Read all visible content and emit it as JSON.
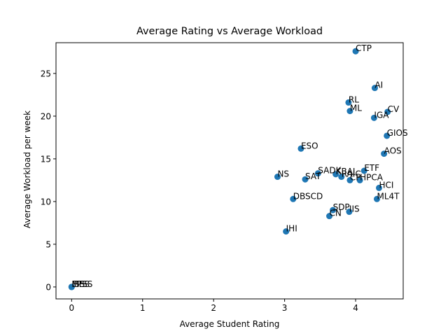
{
  "chart_data": {
    "type": "scatter",
    "title": "Average Rating vs Average Workload",
    "xlabel": "Average Student Rating",
    "ylabel": "Average Workload per week",
    "xlim": [
      -0.22,
      4.67
    ],
    "ylim": [
      -1.4,
      28.6
    ],
    "xticks": [
      0,
      1,
      2,
      3,
      4
    ],
    "yticks": [
      0,
      5,
      10,
      15,
      20,
      25
    ],
    "grid": false,
    "marker_color": "#1f77b4",
    "points": [
      {
        "label": "CTP",
        "x": 4.0,
        "y": 27.6
      },
      {
        "label": "AI",
        "x": 4.27,
        "y": 23.3
      },
      {
        "label": "RL",
        "x": 3.9,
        "y": 21.6
      },
      {
        "label": "ML",
        "x": 3.92,
        "y": 20.6
      },
      {
        "label": "CV",
        "x": 4.45,
        "y": 20.5
      },
      {
        "label": "IGA",
        "x": 4.26,
        "y": 19.8
      },
      {
        "label": "GIOS",
        "x": 4.44,
        "y": 17.7
      },
      {
        "label": "ESO",
        "x": 3.23,
        "y": 16.2
      },
      {
        "label": "AOS",
        "x": 4.4,
        "y": 15.6
      },
      {
        "label": "ETF",
        "x": 4.12,
        "y": 13.6
      },
      {
        "label": "SADK",
        "x": 3.47,
        "y": 13.3
      },
      {
        "label": "KBAI",
        "x": 3.72,
        "y": 13.2
      },
      {
        "label": "RAIC",
        "x": 3.8,
        "y": 12.9
      },
      {
        "label": "NS",
        "x": 2.9,
        "y": 12.9
      },
      {
        "label": "SAT",
        "x": 3.29,
        "y": 12.6
      },
      {
        "label": "CP",
        "x": 3.92,
        "y": 12.5
      },
      {
        "label": "HPCA",
        "x": 4.06,
        "y": 12.5
      },
      {
        "label": "HCI",
        "x": 4.33,
        "y": 11.6
      },
      {
        "label": "DBSCD",
        "x": 3.12,
        "y": 10.3
      },
      {
        "label": "ML4T",
        "x": 4.3,
        "y": 10.3
      },
      {
        "label": "SDP",
        "x": 3.68,
        "y": 9.0
      },
      {
        "label": "IIS",
        "x": 3.91,
        "y": 8.8
      },
      {
        "label": "CN",
        "x": 3.63,
        "y": 8.3
      },
      {
        "label": "IHI",
        "x": 3.02,
        "y": 6.5
      },
      {
        "label": "EPSS",
        "x": 0.0,
        "y": 0.0
      },
      {
        "label": "MES",
        "x": 0.0,
        "y": 0.0
      },
      {
        "label": "ISS",
        "x": 0.0,
        "y": 0.0
      }
    ]
  }
}
